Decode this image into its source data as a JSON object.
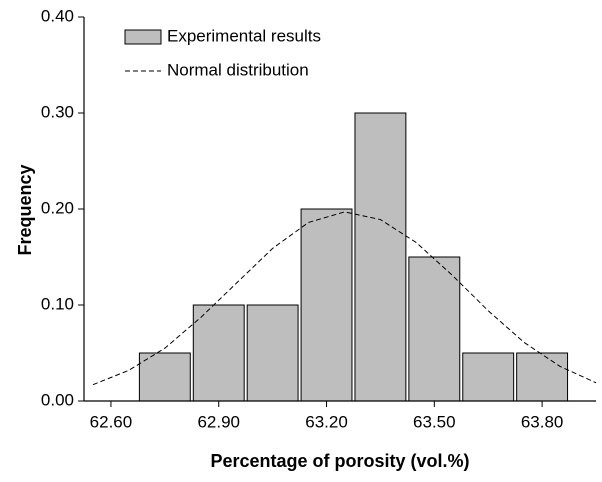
{
  "chart_data": {
    "type": "histogram",
    "x_label": "Percentage of porosity (vol.%)",
    "y_label": "Frequency",
    "bins": [
      62.675,
      62.825,
      62.975,
      63.125,
      63.275,
      63.425,
      63.575,
      63.725,
      63.875
    ],
    "series": [
      {
        "name": "Experimental results",
        "color": "#bebebe",
        "values": [
          0.05,
          0.1,
          0.1,
          0.2,
          0.3,
          0.15,
          0.05,
          0.05
        ]
      },
      {
        "name": "Normal distribution",
        "color": "#000000",
        "style": "dashed",
        "x": [
          62.55,
          62.65,
          62.75,
          62.85,
          62.95,
          63.05,
          63.15,
          63.25,
          63.35,
          63.45,
          63.55,
          63.65,
          63.75,
          63.85,
          63.95
        ],
        "values": [
          0.017,
          0.032,
          0.055,
          0.087,
          0.123,
          0.159,
          0.186,
          0.197,
          0.189,
          0.165,
          0.131,
          0.094,
          0.061,
          0.036,
          0.019
        ]
      }
    ],
    "xlim": [
      62.525,
      63.95
    ],
    "ylim": [
      0,
      0.4
    ],
    "xticks": [
      {
        "value": 62.6,
        "label": "62.60"
      },
      {
        "value": 62.9,
        "label": "62.90"
      },
      {
        "value": 63.2,
        "label": "63.20"
      },
      {
        "value": 63.5,
        "label": "63.50"
      },
      {
        "value": 63.8,
        "label": "63.80"
      }
    ],
    "yticks": [
      {
        "value": 0,
        "label": "0.00"
      },
      {
        "value": 0.1,
        "label": "0.10"
      },
      {
        "value": 0.2,
        "label": "0.20"
      },
      {
        "value": 0.3,
        "label": "0.30"
      },
      {
        "value": 0.4,
        "label": "0.40"
      }
    ],
    "legend": "upper left"
  }
}
